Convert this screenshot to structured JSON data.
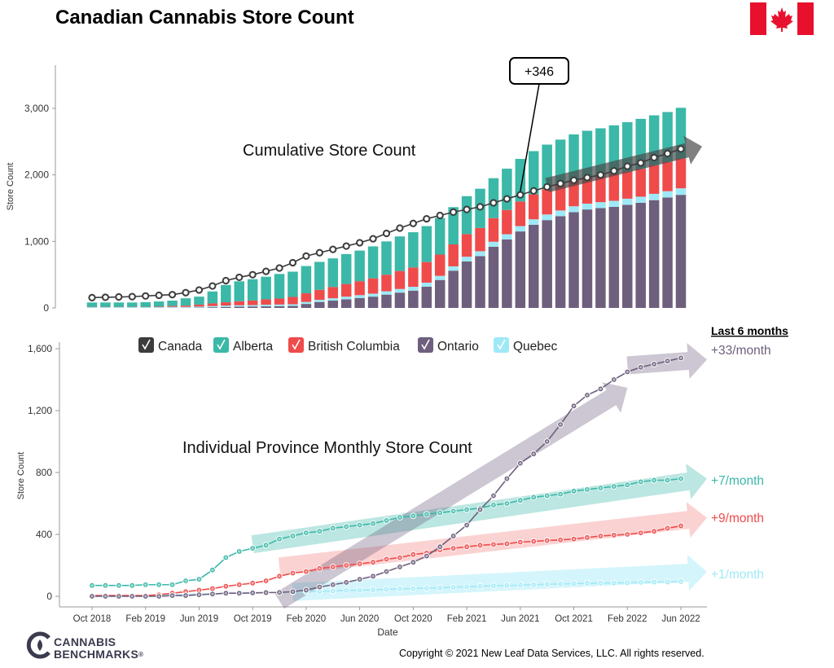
{
  "page_title": "Canadian Cannabis Store Count",
  "copyright": "Copyright © 2021 New Leaf Data Services, LLC. All rights reserved.",
  "brand": {
    "line1": "CANNABIS",
    "line2": "BENCHMARKS",
    "mark": "®"
  },
  "flag_icon": "canada-flag-icon",
  "colors": {
    "canada": "#3c3c3c",
    "alberta": "#3bb8a8",
    "british_columbia": "#ef4b4b",
    "ontario": "#6e5f7d",
    "quebec": "#9fe9f7"
  },
  "chart_data": [
    {
      "type": "bar",
      "stacked": true,
      "title": "Cumulative Store Count",
      "xlabel": "",
      "ylabel": "Store Count",
      "ylim": [
        0,
        3600
      ],
      "yticks": [
        "0",
        "1,000",
        "2,000",
        "3,000"
      ],
      "grid": false,
      "x": [
        "2018-10",
        "2018-11",
        "2018-12",
        "2019-01",
        "2019-02",
        "2019-03",
        "2019-04",
        "2019-05",
        "2019-06",
        "2019-07",
        "2019-08",
        "2019-09",
        "2019-10",
        "2019-11",
        "2019-12",
        "2020-01",
        "2020-02",
        "2020-03",
        "2020-04",
        "2020-05",
        "2020-06",
        "2020-07",
        "2020-08",
        "2020-09",
        "2020-10",
        "2020-11",
        "2020-12",
        "2021-01",
        "2021-02",
        "2021-03",
        "2021-04",
        "2021-05",
        "2021-06",
        "2021-07",
        "2021-08",
        "2021-09",
        "2021-10",
        "2021-11",
        "2021-12",
        "2022-01",
        "2022-02",
        "2022-03",
        "2022-04",
        "2022-05",
        "2022-06"
      ],
      "series": [
        {
          "name": "Ontario",
          "values": [
            0,
            0,
            0,
            0,
            0,
            0,
            0,
            0,
            5,
            10,
            15,
            20,
            22,
            24,
            26,
            30,
            60,
            90,
            110,
            130,
            150,
            170,
            200,
            230,
            260,
            320,
            420,
            560,
            700,
            780,
            920,
            1030,
            1150,
            1250,
            1320,
            1380,
            1440,
            1480,
            1500,
            1520,
            1550,
            1580,
            1620,
            1660,
            1700
          ]
        },
        {
          "name": "Quebec",
          "values": [
            12,
            12,
            12,
            12,
            12,
            12,
            15,
            15,
            15,
            18,
            20,
            20,
            20,
            25,
            25,
            25,
            30,
            32,
            35,
            40,
            42,
            45,
            50,
            55,
            58,
            60,
            62,
            65,
            70,
            72,
            75,
            78,
            80,
            82,
            85,
            85,
            88,
            88,
            90,
            90,
            92,
            92,
            95,
            95,
            98
          ]
        },
        {
          "name": "British Columbia",
          "values": [
            5,
            5,
            5,
            5,
            5,
            10,
            15,
            20,
            30,
            40,
            50,
            60,
            70,
            80,
            90,
            110,
            130,
            150,
            170,
            190,
            210,
            230,
            250,
            270,
            290,
            310,
            320,
            330,
            340,
            350,
            355,
            365,
            370,
            375,
            380,
            385,
            390,
            395,
            400,
            405,
            410,
            420,
            430,
            440,
            450
          ]
        },
        {
          "name": "Alberta",
          "values": [
            65,
            65,
            65,
            65,
            70,
            75,
            80,
            110,
            120,
            180,
            260,
            300,
            320,
            340,
            370,
            380,
            410,
            420,
            430,
            450,
            460,
            480,
            500,
            520,
            530,
            540,
            550,
            560,
            570,
            590,
            600,
            620,
            640,
            650,
            670,
            680,
            690,
            700,
            710,
            730,
            740,
            750,
            750,
            750,
            760
          ]
        }
      ],
      "line_series": {
        "name": "Canada",
        "values": [
          155,
          160,
          165,
          170,
          180,
          190,
          200,
          230,
          270,
          330,
          410,
          460,
          500,
          550,
          600,
          680,
          780,
          830,
          880,
          930,
          980,
          1040,
          1120,
          1200,
          1270,
          1340,
          1390,
          1440,
          1480,
          1520,
          1580,
          1640,
          1700,
          1760,
          1820,
          1870,
          1920,
          1960,
          2000,
          2060,
          2130,
          2180,
          2260,
          2320,
          2390
        ]
      },
      "annotation": "+346"
    },
    {
      "type": "line",
      "title": "Individual Province Monthly Store Count",
      "xlabel": "Date",
      "ylabel": "Store Count",
      "ylim": [
        0,
        1600
      ],
      "yticks": [
        "0",
        "400",
        "800",
        "1,200",
        "1,600"
      ],
      "xticks": [
        "Oct 2018",
        "Feb 2019",
        "Jun 2019",
        "Oct 2019",
        "Feb 2020",
        "Jun 2020",
        "Oct 2020",
        "Feb 2021",
        "Jun 2021",
        "Oct 2021",
        "Feb 2022",
        "Jun 2022"
      ],
      "legend": [
        "Canada",
        "Alberta",
        "British Columbia",
        "Ontario",
        "Quebec"
      ],
      "legend_position": "top",
      "series": [
        {
          "name": "Alberta",
          "values": [
            70,
            70,
            70,
            70,
            75,
            75,
            75,
            100,
            110,
            170,
            250,
            290,
            310,
            330,
            370,
            390,
            410,
            420,
            440,
            450,
            460,
            470,
            490,
            510,
            520,
            530,
            540,
            550,
            560,
            570,
            590,
            600,
            620,
            640,
            650,
            660,
            680,
            690,
            700,
            710,
            720,
            740,
            750,
            750,
            760
          ]
        },
        {
          "name": "British Columbia",
          "values": [
            5,
            5,
            5,
            5,
            5,
            10,
            20,
            30,
            40,
            50,
            65,
            75,
            85,
            100,
            130,
            150,
            160,
            180,
            190,
            200,
            210,
            220,
            240,
            250,
            270,
            280,
            300,
            310,
            320,
            330,
            335,
            340,
            350,
            355,
            360,
            365,
            370,
            380,
            390,
            395,
            400,
            410,
            420,
            440,
            455
          ]
        },
        {
          "name": "Ontario",
          "values": [
            0,
            0,
            0,
            0,
            0,
            0,
            5,
            5,
            10,
            15,
            20,
            20,
            22,
            24,
            25,
            30,
            40,
            60,
            75,
            90,
            110,
            130,
            160,
            190,
            220,
            260,
            320,
            390,
            460,
            560,
            650,
            760,
            860,
            920,
            1000,
            1110,
            1230,
            1300,
            1340,
            1400,
            1450,
            1480,
            1500,
            1520,
            1540
          ]
        },
        {
          "name": "Quebec",
          "values": [
            5,
            5,
            5,
            5,
            5,
            5,
            10,
            10,
            15,
            15,
            20,
            20,
            20,
            25,
            25,
            28,
            30,
            32,
            35,
            38,
            40,
            42,
            45,
            48,
            50,
            52,
            55,
            58,
            62,
            65,
            68,
            70,
            72,
            75,
            78,
            80,
            82,
            84,
            85,
            86,
            88,
            90,
            92,
            92,
            95
          ]
        }
      ],
      "trend_title": "Last 6 months",
      "trends": [
        {
          "name": "Ontario",
          "label": "+33/month"
        },
        {
          "name": "Alberta",
          "label": "+7/month"
        },
        {
          "name": "British Columbia",
          "label": "+9/month"
        },
        {
          "name": "Quebec",
          "label": "+1/month"
        }
      ]
    }
  ]
}
